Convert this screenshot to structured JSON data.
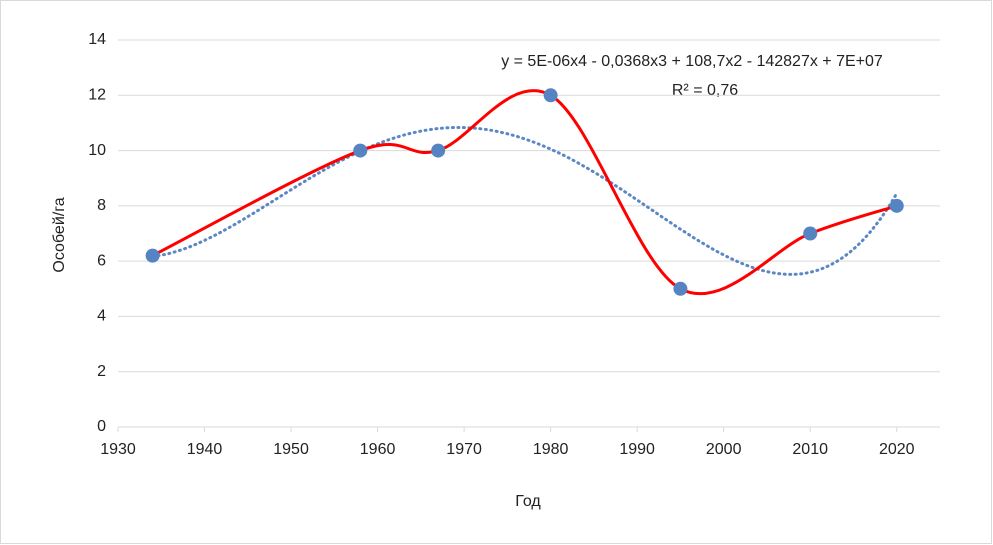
{
  "chart_data": {
    "type": "scatter",
    "x": [
      1934,
      1958,
      1967,
      1980,
      1995,
      2010,
      2020
    ],
    "values": [
      6.2,
      10,
      10,
      12,
      5,
      7,
      8
    ],
    "line_color": "#ff0000",
    "marker_color": "#5683c2",
    "smooth": true,
    "xlim": [
      1930,
      2025
    ],
    "xticks": [
      1930,
      1940,
      1950,
      1960,
      1970,
      1980,
      1990,
      2000,
      2010,
      2020
    ],
    "ylim": [
      0,
      14
    ],
    "yticks": [
      0,
      2,
      4,
      6,
      8,
      10,
      12,
      14
    ],
    "grid": true,
    "xlabel": "Год",
    "ylabel": "Особей/га",
    "trendline": {
      "order": 4,
      "color": "#5b87c5",
      "equation": "y = 5E-06x4 - 0,0368x3 + 108,7x2 - 142827x + 7E+07",
      "r_squared": "R² = 0,76"
    }
  }
}
